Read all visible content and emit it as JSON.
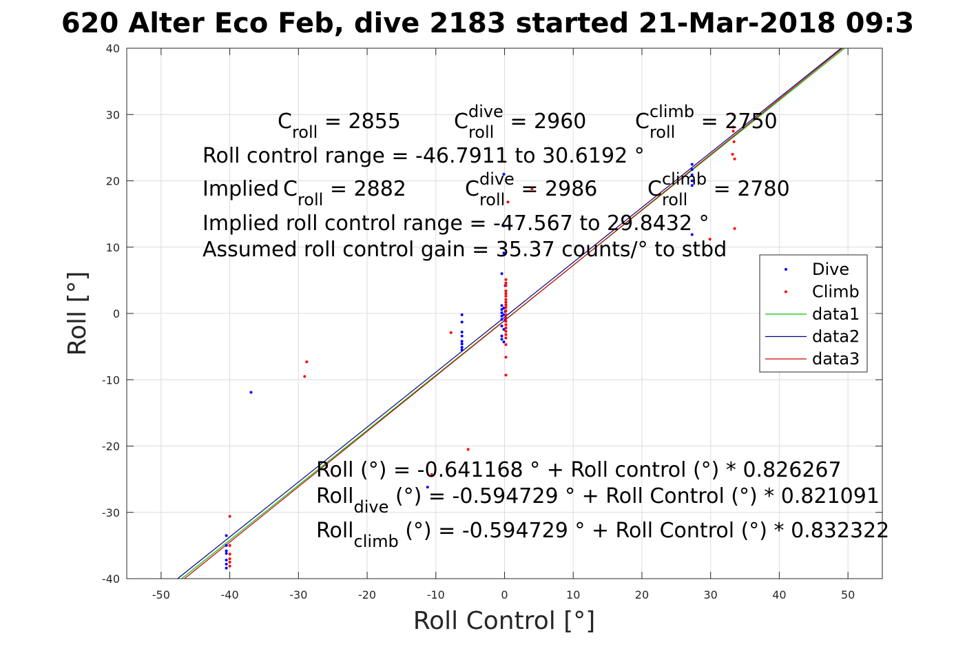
{
  "chart_data": {
    "type": "scatter",
    "title": "620 Alter Eco Feb, dive 2183 started 21-Mar-2018 09:3",
    "xlabel": "Roll Control [°]",
    "ylabel": "Roll [°]",
    "xlim": [
      -55,
      55
    ],
    "ylim": [
      -40,
      40
    ],
    "grid": true,
    "xticks": [
      -50,
      -40,
      -30,
      -20,
      -10,
      0,
      10,
      20,
      30,
      40,
      50
    ],
    "yticks": [
      -40,
      -30,
      -20,
      -10,
      0,
      10,
      20,
      30,
      40
    ],
    "xtick_labels": [
      "-50",
      "-40",
      "-30",
      "-20",
      "-10",
      "0",
      "10",
      "20",
      "30",
      "40",
      "50"
    ],
    "ytick_labels": [
      "-40",
      "-30",
      "-20",
      "-10",
      "0",
      "10",
      "20",
      "30",
      "40"
    ],
    "legend_position": "right",
    "series": [
      {
        "name": "Dive",
        "kind": "points",
        "color": "#0000ff",
        "points": [
          [
            -40.5,
            -33.5
          ],
          [
            -40.5,
            -35
          ],
          [
            -40.5,
            -35.8
          ],
          [
            -40.5,
            -36.2
          ],
          [
            -40.5,
            -37.2
          ],
          [
            -40.5,
            -37.8
          ],
          [
            -40.5,
            -38.4
          ],
          [
            -36.9,
            -11.9
          ],
          [
            -11.2,
            -26.2
          ],
          [
            -6.2,
            -0.2
          ],
          [
            -6.2,
            -1.3
          ],
          [
            -6.2,
            -2.8
          ],
          [
            -6.2,
            -3.4
          ],
          [
            -6.2,
            -4.2
          ],
          [
            -6.2,
            -4.6
          ],
          [
            -6.2,
            -5.1
          ],
          [
            -6.2,
            -5.5
          ],
          [
            -0.4,
            6.0
          ],
          [
            -0.4,
            1.2
          ],
          [
            -0.4,
            0.6
          ],
          [
            -0.4,
            0.1
          ],
          [
            -0.4,
            -0.4
          ],
          [
            -0.4,
            -0.9
          ],
          [
            -0.4,
            -1.9
          ],
          [
            -0.4,
            -3.4
          ],
          [
            -0.4,
            -3.9
          ],
          [
            -0.1,
            21.0
          ],
          [
            -0.1,
            13.2
          ],
          [
            -0.1,
            9.1
          ],
          [
            -0.1,
            0.8
          ],
          [
            -0.1,
            -0.2
          ],
          [
            -0.1,
            -2.4
          ],
          [
            -0.1,
            -4.3
          ],
          [
            0.1,
            4.2
          ],
          [
            0.1,
            0.3
          ],
          [
            0.1,
            -1.0
          ],
          [
            27.3,
            22.5
          ],
          [
            27.3,
            21.7
          ],
          [
            27.3,
            20.9
          ],
          [
            27.3,
            20.0
          ],
          [
            27.3,
            19.3
          ],
          [
            27.3,
            11.9
          ]
        ]
      },
      {
        "name": "Climb",
        "kind": "points",
        "color": "#ff0000",
        "points": [
          [
            -40,
            -30.6
          ],
          [
            -40,
            -35
          ],
          [
            -40,
            -36.3
          ],
          [
            -40,
            -37.0
          ],
          [
            -40,
            -37.5
          ],
          [
            -40,
            -38.1
          ],
          [
            -28.8,
            -7.3
          ],
          [
            -29.1,
            -9.5
          ],
          [
            -7.8,
            -2.9
          ],
          [
            -5.3,
            -20.5
          ],
          [
            -10.6,
            -24.3
          ],
          [
            0.2,
            5.1
          ],
          [
            0.2,
            4.6
          ],
          [
            0.2,
            4.2
          ],
          [
            0.2,
            3.4
          ],
          [
            0.2,
            3.0
          ],
          [
            0.2,
            2.6
          ],
          [
            0.2,
            2.1
          ],
          [
            0.2,
            1.7
          ],
          [
            0.2,
            1.3
          ],
          [
            0.2,
            0.9
          ],
          [
            0.2,
            0.4
          ],
          [
            0.2,
            -0.2
          ],
          [
            0.2,
            -0.7
          ],
          [
            0.2,
            -1.2
          ],
          [
            0.2,
            -1.7
          ],
          [
            0.2,
            -2.2
          ],
          [
            0.2,
            -2.7
          ],
          [
            0.2,
            -3.2
          ],
          [
            0.2,
            -3.7
          ],
          [
            0.2,
            -4.7
          ],
          [
            0.2,
            -6.6
          ],
          [
            0.2,
            -9.3
          ],
          [
            0.5,
            16.8
          ],
          [
            4.0,
            18.8
          ],
          [
            29.9,
            11.2
          ],
          [
            33.3,
            30.0
          ],
          [
            33.3,
            28.1
          ],
          [
            33.3,
            27.5
          ],
          [
            33.4,
            25.9
          ],
          [
            33.2,
            24.0
          ],
          [
            33.5,
            23.3
          ],
          [
            33.5,
            12.8
          ]
        ]
      },
      {
        "name": "data1",
        "kind": "line",
        "color": "#00c000",
        "x": [
          -47.0,
          49.5
        ],
        "y": [
          -40,
          40
        ]
      },
      {
        "name": "data2",
        "kind": "line",
        "color": "#000080",
        "x": [
          -47.6,
          49.0
        ],
        "y": [
          -40,
          40
        ]
      },
      {
        "name": "data3",
        "kind": "line",
        "color": "#cc0000",
        "x": [
          -46.6,
          49.2
        ],
        "y": [
          -40,
          40
        ]
      }
    ],
    "annotations": {
      "top": {
        "row1": [
          {
            "main": "C",
            "sub": "roll",
            "sup": "",
            "rest": " = 2855"
          },
          {
            "main": "C",
            "sub": "roll",
            "sup": "dive",
            "rest": " = 2960"
          },
          {
            "main": "C",
            "sub": "roll",
            "sup": "climb",
            "rest": " = 2750"
          }
        ],
        "line2": "Roll control range = -46.7911 to 30.6192 °",
        "row3_prefix": "Implied ",
        "row3": [
          {
            "main": "C",
            "sub": "roll",
            "sup": "",
            "rest": " = 2882"
          },
          {
            "main": "C",
            "sub": "roll",
            "sup": "dive",
            "rest": " = 2986"
          },
          {
            "main": "C",
            "sub": "roll",
            "sup": "climb",
            "rest": " = 2780"
          }
        ],
        "line4": "Implied roll control range = -47.567 to 29.8432 °",
        "line5": "Assumed roll control gain = 35.37 counts/° to stbd"
      },
      "bottom": {
        "line1": "Roll (°) = -0.641168 ° + Roll control (°) * 0.826267",
        "line2": {
          "main": "Roll",
          "sub": "dive",
          "rest": " (°) = -0.594729 ° + Roll Control (°) * 0.821091"
        },
        "line3": {
          "main": "Roll",
          "sub": "climb",
          "rest": " (°) = -0.594729 ° + Roll Control (°) * 0.832322"
        }
      }
    }
  }
}
